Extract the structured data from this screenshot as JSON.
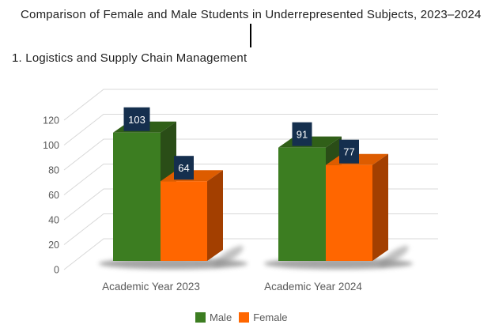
{
  "title": "Comparison of Female and Male Students in Underrepresented Subjects, 2023–2024",
  "subtitle": "1. Logistics and Supply Chain Management",
  "chart_data": {
    "type": "bar",
    "projection": "3d-clustered-column",
    "categories": [
      "Academic Year 2023",
      "Academic Year 2024"
    ],
    "series": [
      {
        "name": "Male",
        "values": [
          103,
          91
        ],
        "color": "#3C7D21",
        "color_top": "#305F18",
        "color_side": "#2A4D17"
      },
      {
        "name": "Female",
        "values": [
          64,
          77
        ],
        "color": "#FF6600",
        "color_top": "#DD5C00",
        "color_side": "#A33F00"
      }
    ],
    "yticks": [
      0,
      20,
      40,
      60,
      80,
      100,
      120
    ],
    "ylim": [
      0,
      120
    ],
    "grid": true,
    "legend_position": "bottom",
    "value_labels": {
      "show": true,
      "bg": "#152F4E",
      "fg": "#FFFFFF"
    },
    "colors": {
      "tick_text": "#595959",
      "category_text": "#595959",
      "gridline": "#D8D8D8"
    }
  }
}
